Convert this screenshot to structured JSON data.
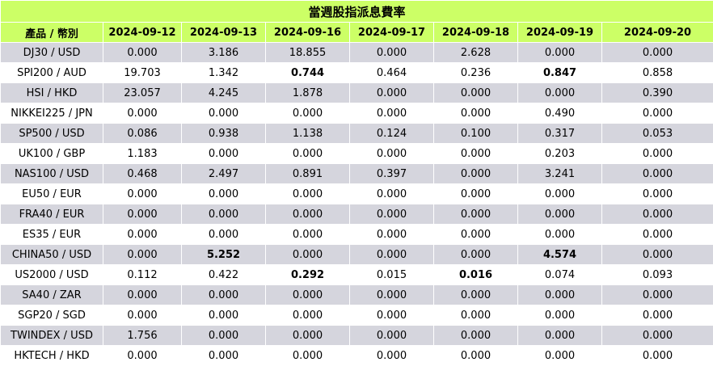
{
  "table": {
    "title": "當週股指派息費率",
    "product_header": "產品  /  幣別",
    "dates": [
      "2024-09-12",
      "2024-09-13",
      "2024-09-16",
      "2024-09-17",
      "2024-09-18",
      "2024-09-19",
      "2024-09-20"
    ],
    "rows": [
      {
        "product": "DJ30 / USD",
        "values": [
          "0.000",
          "3.186",
          "18.855",
          "0.000",
          "2.628",
          "0.000",
          "0.000"
        ],
        "bold": []
      },
      {
        "product": "SPI200 / AUD",
        "values": [
          "19.703",
          "1.342",
          "0.744",
          "0.464",
          "0.236",
          "0.847",
          "0.858"
        ],
        "bold": [
          2,
          5
        ]
      },
      {
        "product": "HSI / HKD",
        "values": [
          "23.057",
          "4.245",
          "1.878",
          "0.000",
          "0.000",
          "0.000",
          "0.390"
        ],
        "bold": []
      },
      {
        "product": "NIKKEI225 / JPN",
        "values": [
          "0.000",
          "0.000",
          "0.000",
          "0.000",
          "0.000",
          "0.490",
          "0.000"
        ],
        "bold": []
      },
      {
        "product": "SP500 / USD",
        "values": [
          "0.086",
          "0.938",
          "1.138",
          "0.124",
          "0.100",
          "0.317",
          "0.053"
        ],
        "bold": []
      },
      {
        "product": "UK100 / GBP",
        "values": [
          "1.183",
          "0.000",
          "0.000",
          "0.000",
          "0.000",
          "0.203",
          "0.000"
        ],
        "bold": []
      },
      {
        "product": "NAS100 / USD",
        "values": [
          "0.468",
          "2.497",
          "0.891",
          "0.397",
          "0.000",
          "3.241",
          "0.000"
        ],
        "bold": []
      },
      {
        "product": "EU50 / EUR",
        "values": [
          "0.000",
          "0.000",
          "0.000",
          "0.000",
          "0.000",
          "0.000",
          "0.000"
        ],
        "bold": []
      },
      {
        "product": "FRA40 / EUR",
        "values": [
          "0.000",
          "0.000",
          "0.000",
          "0.000",
          "0.000",
          "0.000",
          "0.000"
        ],
        "bold": []
      },
      {
        "product": "ES35 / EUR",
        "values": [
          "0.000",
          "0.000",
          "0.000",
          "0.000",
          "0.000",
          "0.000",
          "0.000"
        ],
        "bold": []
      },
      {
        "product": "CHINA50 / USD",
        "values": [
          "0.000",
          "5.252",
          "0.000",
          "0.000",
          "0.000",
          "4.574",
          "0.000"
        ],
        "bold": [
          1,
          5
        ]
      },
      {
        "product": "US2000 / USD",
        "values": [
          "0.112",
          "0.422",
          "0.292",
          "0.015",
          "0.016",
          "0.074",
          "0.093"
        ],
        "bold": [
          2,
          4
        ]
      },
      {
        "product": "SA40 / ZAR",
        "values": [
          "0.000",
          "0.000",
          "0.000",
          "0.000",
          "0.000",
          "0.000",
          "0.000"
        ],
        "bold": []
      },
      {
        "product": "SGP20 / SGD",
        "values": [
          "0.000",
          "0.000",
          "0.000",
          "0.000",
          "0.000",
          "0.000",
          "0.000"
        ],
        "bold": []
      },
      {
        "product": "TWINDEX / USD",
        "values": [
          "1.756",
          "0.000",
          "0.000",
          "0.000",
          "0.000",
          "0.000",
          "0.000"
        ],
        "bold": []
      },
      {
        "product": "HKTECH / HKD",
        "values": [
          "0.000",
          "0.000",
          "0.000",
          "0.000",
          "0.000",
          "0.000",
          "0.000"
        ],
        "bold": []
      }
    ]
  },
  "colors": {
    "header_bg": "#ccff66",
    "row_odd_bg": "#d5d5dd",
    "row_even_bg": "#ffffff"
  }
}
